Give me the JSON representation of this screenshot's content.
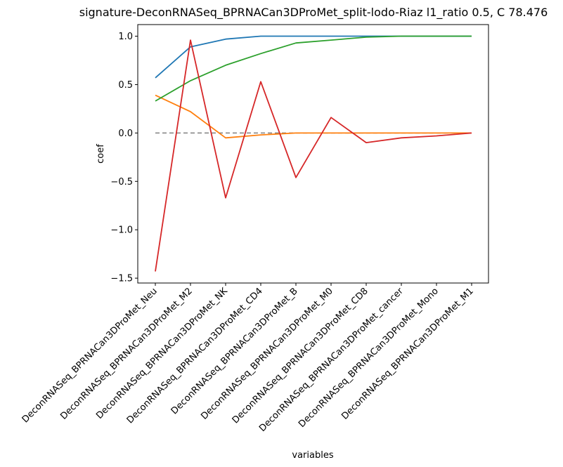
{
  "chart_data": {
    "type": "line",
    "title": "signature-DeconRNASeq_BPRNACan3DProMet_split-lodo-Riaz l1_ratio 0.5, C 78.476",
    "xlabel": "variables",
    "ylabel": "coef",
    "ylim": [
      -1.55,
      1.12
    ],
    "yticks": [
      -1.5,
      -1.0,
      -0.5,
      0.0,
      0.5,
      1.0
    ],
    "ytick_labels": [
      "−1.5",
      "−1.0",
      "−0.5",
      "0.0",
      "0.5",
      "1.0"
    ],
    "categories": [
      "DeconRNASeq_BPRNACan3DProMet_Neu",
      "DeconRNASeq_BPRNACan3DProMet_M2",
      "DeconRNASeq_BPRNACan3DProMet_NK",
      "DeconRNASeq_BPRNACan3DProMet_CD4",
      "DeconRNASeq_BPRNACan3DProMet_B",
      "DeconRNASeq_BPRNACan3DProMet_M0",
      "DeconRNASeq_BPRNACan3DProMet_CD8",
      "DeconRNASeq_BPRNACan3DProMet_cancer",
      "DeconRNASeq_BPRNACan3DProMet_Mono",
      "DeconRNASeq_BPRNACan3DProMet_M1"
    ],
    "baseline": {
      "value": 0.0,
      "color": "#808080",
      "style": "dashed"
    },
    "series": [
      {
        "color": "#1f77b4",
        "values": [
          0.57,
          0.89,
          0.97,
          1.0,
          1.0,
          1.0,
          1.0,
          1.0,
          1.0,
          1.0
        ]
      },
      {
        "color": "#ff7f0e",
        "values": [
          0.39,
          0.22,
          -0.05,
          -0.02,
          0.0,
          0.0,
          0.0,
          0.0,
          0.0,
          0.0
        ]
      },
      {
        "color": "#2ca02c",
        "values": [
          0.33,
          0.54,
          0.7,
          0.82,
          0.93,
          0.96,
          0.99,
          1.0,
          1.0,
          1.0
        ]
      },
      {
        "color": "#d62728",
        "values": [
          -1.43,
          0.96,
          -0.67,
          0.53,
          -0.46,
          0.16,
          -0.1,
          -0.05,
          -0.03,
          0.0
        ]
      }
    ],
    "grid": false,
    "legend": "none"
  }
}
